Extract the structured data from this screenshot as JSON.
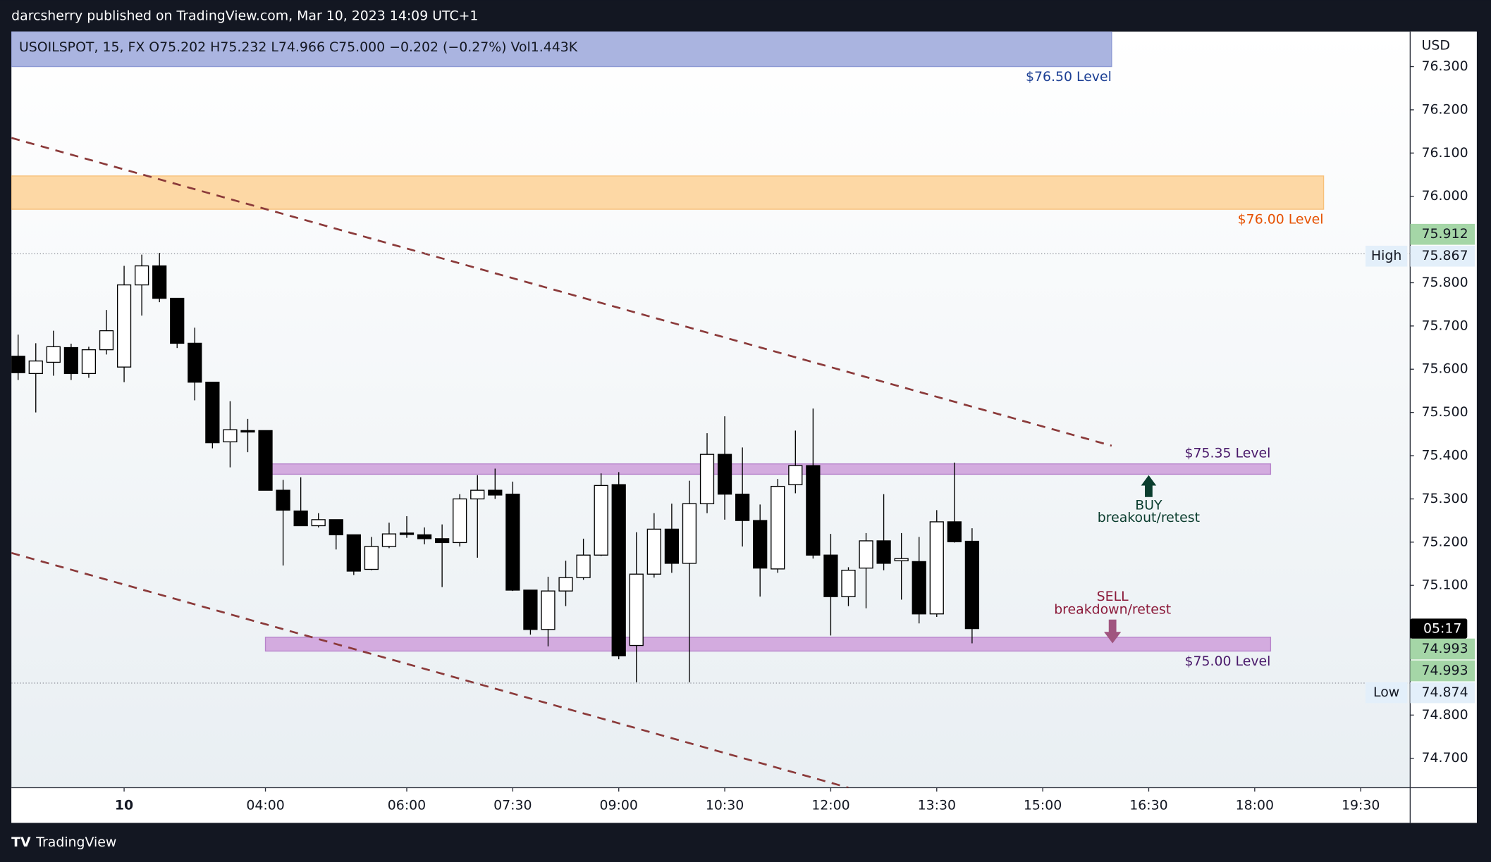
{
  "header": {
    "byline": "darcsherry published on TradingView.com, Mar 10, 2023 14:09 UTC+1",
    "legend": "USOILSPOT, 15, FX  O75.202  H75.232  L74.966  C75.000  −0.202 (−0.27%)  Vol1.443K",
    "currency": "USD",
    "brand": "TradingView"
  },
  "chart_data": {
    "type": "candlestick",
    "up_color": "#ffffff",
    "down_color": "#000000",
    "xlim": [
      -0.38,
      78.8
    ],
    "xticks": [
      {
        "value": 6,
        "label": "10"
      },
      {
        "value": 14,
        "label": "04:00"
      },
      {
        "value": 22,
        "label": "06:00"
      },
      {
        "value": 28,
        "label": "07:30"
      },
      {
        "value": 34,
        "label": "09:00"
      },
      {
        "value": 40,
        "label": "10:30"
      },
      {
        "value": 46,
        "label": "12:00"
      },
      {
        "value": 52,
        "label": "13:30"
      },
      {
        "value": 58,
        "label": "15:00"
      },
      {
        "value": 64,
        "label": "16:30"
      },
      {
        "value": 70,
        "label": "18:00"
      },
      {
        "value": 76,
        "label": "19:30"
      }
    ],
    "ylim": [
      74.632,
      76.381
    ],
    "yticks": [
      {
        "value": 76.3,
        "label": "76.300"
      },
      {
        "value": 76.2,
        "label": "76.200"
      },
      {
        "value": 76.1,
        "label": "76.100"
      },
      {
        "value": 76.0,
        "label": "76.000"
      },
      {
        "value": 75.8,
        "label": "75.800"
      },
      {
        "value": 75.7,
        "label": "75.700"
      },
      {
        "value": 75.6,
        "label": "75.600"
      },
      {
        "value": 75.5,
        "label": "75.500"
      },
      {
        "value": 75.4,
        "label": "75.400"
      },
      {
        "value": 75.3,
        "label": "75.300"
      },
      {
        "value": 75.2,
        "label": "75.200"
      },
      {
        "value": 75.1,
        "label": "75.100"
      },
      {
        "value": 74.8,
        "label": "74.800"
      },
      {
        "value": 74.7,
        "label": "74.700"
      }
    ],
    "open": [
      75.63,
      75.59,
      75.616,
      75.65,
      75.59,
      75.645,
      75.605,
      75.795,
      75.839,
      75.764,
      75.66,
      75.57,
      75.432,
      75.458,
      75.458,
      75.32,
      75.272,
      75.238,
      75.252,
      75.217,
      75.137,
      75.19,
      75.221,
      75.217,
      75.208,
      75.199,
      75.3,
      75.32,
      75.311,
      75.089,
      74.998,
      75.087,
      75.118,
      75.17,
      75.333,
      74.961,
      75.126,
      75.23,
      75.151,
      75.289,
      75.403,
      75.311,
      75.25,
      75.138,
      75.333,
      75.377,
      75.17,
      75.074,
      75.14,
      75.203,
      75.157,
      75.155,
      75.034,
      75.247,
      75.202
    ],
    "high": [
      75.68,
      75.66,
      75.689,
      75.659,
      75.652,
      75.737,
      75.839,
      75.865,
      75.869,
      75.764,
      75.696,
      75.57,
      75.526,
      75.485,
      75.458,
      75.344,
      75.35,
      75.267,
      75.252,
      75.217,
      75.212,
      75.245,
      75.26,
      75.234,
      75.241,
      75.311,
      75.355,
      75.37,
      75.34,
      75.089,
      75.12,
      75.157,
      75.208,
      75.359,
      75.362,
      75.223,
      75.267,
      75.289,
      75.342,
      75.452,
      75.491,
      75.419,
      75.287,
      75.346,
      75.458,
      75.509,
      75.219,
      75.142,
      75.221,
      75.311,
      75.221,
      75.212,
      75.274,
      75.384,
      75.232
    ],
    "low": [
      75.575,
      75.5,
      75.585,
      75.575,
      75.58,
      75.634,
      75.57,
      75.724,
      75.755,
      75.649,
      75.528,
      75.417,
      75.373,
      75.408,
      75.32,
      75.146,
      75.238,
      75.234,
      75.183,
      75.124,
      75.135,
      75.186,
      75.21,
      75.195,
      75.096,
      75.19,
      75.164,
      75.3,
      75.087,
      74.986,
      74.959,
      75.052,
      75.113,
      75.168,
      74.929,
      74.876,
      75.118,
      75.129,
      74.876,
      75.267,
      75.252,
      75.19,
      75.074,
      75.129,
      75.313,
      75.162,
      74.984,
      75.052,
      75.047,
      75.135,
      75.067,
      75.012,
      75.027,
      75.199,
      74.966
    ],
    "close": [
      75.592,
      75.619,
      75.652,
      75.59,
      75.645,
      75.689,
      75.795,
      75.839,
      75.764,
      75.66,
      75.57,
      75.43,
      75.46,
      75.455,
      75.32,
      75.274,
      75.238,
      75.252,
      75.217,
      75.133,
      75.19,
      75.219,
      75.219,
      75.208,
      75.199,
      75.3,
      75.32,
      75.309,
      75.089,
      74.998,
      75.087,
      75.118,
      75.17,
      75.331,
      74.937,
      75.126,
      75.23,
      75.151,
      75.289,
      75.403,
      75.311,
      75.25,
      75.14,
      75.329,
      75.377,
      75.17,
      75.074,
      75.135,
      75.203,
      75.151,
      75.162,
      75.034,
      75.247,
      75.201,
      75.0
    ],
    "zones": [
      {
        "label": "$76.50 Level",
        "x": [
          -0.38,
          61.9
        ],
        "y": [
          76.3,
          76.381
        ],
        "fill": "#aab4e0",
        "stroke": "#8d9ad4",
        "text_color": "#1c3f94"
      },
      {
        "label": "$76.00 Level",
        "x": [
          -0.38,
          73.9
        ],
        "y": [
          75.97,
          76.047
        ],
        "fill": "#fdd8a5",
        "stroke": "#f7c07a",
        "text_color": "#e65100"
      },
      {
        "label": "$75.35 Level",
        "x": [
          14.0,
          70.9
        ],
        "y": [
          75.357,
          75.381
        ],
        "fill": "#d3abdf",
        "stroke": "#b784cb",
        "text_color": "#4a1a6b"
      },
      {
        "label": "$75.00 Level",
        "x": [
          14.0,
          70.9
        ],
        "y": [
          74.948,
          74.98
        ],
        "fill": "#d3abdf",
        "stroke": "#b784cb",
        "text_color": "#4a1a6b"
      }
    ],
    "trendlines": [
      {
        "color": "#8b3a3a",
        "points": [
          [
            -0.38,
            76.135
          ],
          [
            61.9,
            75.423
          ]
        ]
      },
      {
        "color": "#8b3a3a",
        "points": [
          [
            -0.38,
            75.175
          ],
          [
            47.0,
            74.632
          ]
        ]
      }
    ],
    "high_line": 75.867,
    "low_line": 74.874,
    "markers": [
      {
        "text": "75.912",
        "value": 75.912
      },
      {
        "name": "High",
        "text": "75.867",
        "value": 75.867
      },
      {
        "text": "05:17"
      },
      {
        "text": "74.993",
        "value": 74.993
      },
      {
        "text": "74.993",
        "value": 74.993
      },
      {
        "name": "Low",
        "text": "74.874",
        "value": 74.874
      }
    ],
    "annotations": {
      "buy": "BUY",
      "buy_note": "breakout/retest",
      "sell": "SELL",
      "sell_note": "breakdown/retest"
    }
  }
}
